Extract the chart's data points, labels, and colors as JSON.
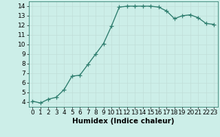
{
  "x": [
    0,
    1,
    2,
    3,
    4,
    5,
    6,
    7,
    8,
    9,
    10,
    11,
    12,
    13,
    14,
    15,
    16,
    17,
    18,
    19,
    20,
    21,
    22,
    23
  ],
  "y": [
    4.1,
    3.9,
    4.3,
    4.5,
    5.3,
    6.7,
    6.8,
    7.9,
    9.0,
    10.1,
    11.9,
    13.9,
    14.0,
    14.0,
    14.0,
    14.0,
    13.9,
    13.5,
    12.7,
    13.0,
    13.1,
    12.8,
    12.2,
    12.1
  ],
  "xlabel": "Humidex (Indice chaleur)",
  "ylim": [
    3.5,
    14.5
  ],
  "xlim": [
    -0.5,
    23.5
  ],
  "yticks": [
    4,
    5,
    6,
    7,
    8,
    9,
    10,
    11,
    12,
    13,
    14
  ],
  "xticks": [
    0,
    1,
    2,
    3,
    4,
    5,
    6,
    7,
    8,
    9,
    10,
    11,
    12,
    13,
    14,
    15,
    16,
    17,
    18,
    19,
    20,
    21,
    22,
    23
  ],
  "line_color": "#2e7d6e",
  "marker_color": "#2e7d6e",
  "bg_color": "#cceee8",
  "grid_color": "#c0ddd8",
  "xlabel_fontsize": 7.5,
  "tick_fontsize": 6.5,
  "line_width": 1.0,
  "marker_size": 4
}
